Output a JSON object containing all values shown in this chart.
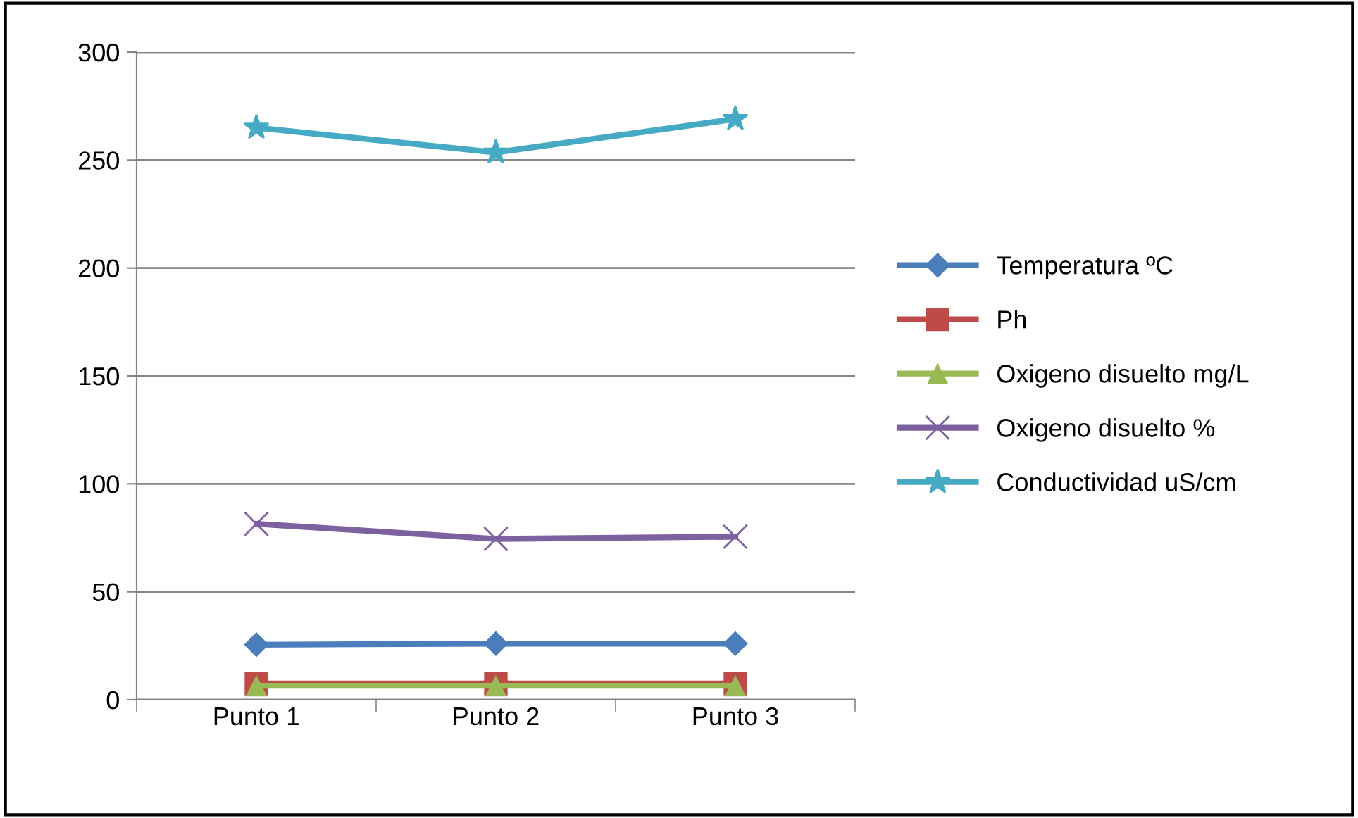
{
  "chart_data": {
    "type": "line",
    "categories": [
      "Punto 1",
      "Punto 2",
      "Punto 3"
    ],
    "series": [
      {
        "name": "Temperatura ºC",
        "color": "#4a7ebb",
        "marker": "diamond",
        "values": [
          25.5,
          26,
          26
        ]
      },
      {
        "name": "Ph",
        "color": "#be4b48",
        "marker": "square",
        "values": [
          7.5,
          7.5,
          7.5
        ]
      },
      {
        "name": "Oxigeno disuelto mg/L",
        "color": "#98b954",
        "marker": "triangle",
        "values": [
          6.5,
          6.5,
          6.5
        ]
      },
      {
        "name": "Oxigeno disuelto %",
        "color": "#7d60a0",
        "marker": "cross",
        "values": [
          81.5,
          74.5,
          75.5
        ]
      },
      {
        "name": "Conductividad uS/cm",
        "color": "#46aac5",
        "marker": "star",
        "values": [
          265,
          253.5,
          269
        ]
      }
    ],
    "ylim": [
      0,
      300
    ],
    "yticks": [
      0,
      50,
      100,
      150,
      200,
      250,
      300
    ],
    "grid": "y",
    "legend": "right"
  }
}
